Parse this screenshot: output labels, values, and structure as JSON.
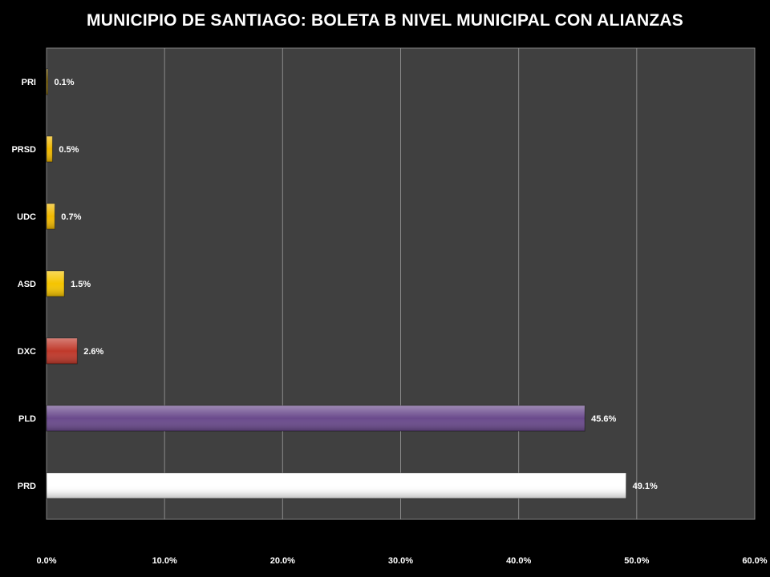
{
  "chart_data": {
    "type": "bar",
    "orientation": "horizontal",
    "title": "MUNICIPIO DE SANTIAGO: BOLETA B NIVEL MUNICIPAL CON ALIANZAS",
    "categories": [
      "PRI",
      "PRSD",
      "UDC",
      "ASD",
      "DXC",
      "PLD",
      "PRD"
    ],
    "values": [
      0.1,
      0.5,
      0.7,
      1.5,
      2.6,
      45.6,
      49.1
    ],
    "value_labels": [
      "0.1%",
      "0.5%",
      "0.7%",
      "1.5%",
      "2.6%",
      "45.6%",
      "49.1%"
    ],
    "bar_colors": [
      "#d4a400",
      "#f0b800",
      "#f0b800",
      "#f5c400",
      "#c0392b",
      "#6a4a8c",
      "#ffffff"
    ],
    "xlim": [
      0,
      60
    ],
    "xticks": [
      "0.0%",
      "10.0%",
      "20.0%",
      "30.0%",
      "40.0%",
      "50.0%",
      "60.0%"
    ],
    "grid": true,
    "legend": "none",
    "plot_background": "#404040",
    "page_background": "#000000"
  }
}
